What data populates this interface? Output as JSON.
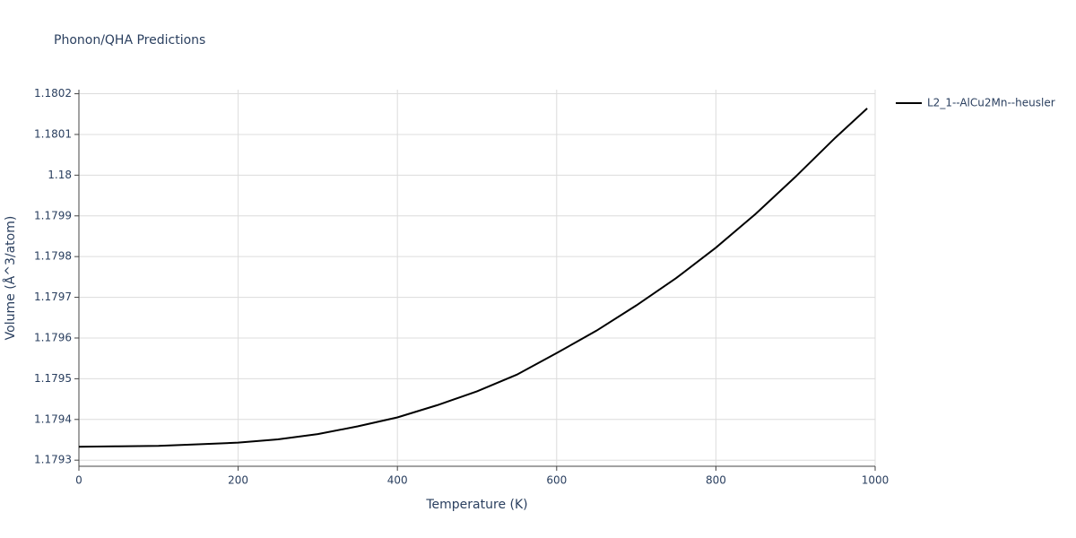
{
  "chart_data": {
    "type": "line",
    "title": "Phonon/QHA Predictions",
    "x_label": "Temperature (K)",
    "y_label": "Volume (Å^3/atom)",
    "x": [
      0,
      50,
      100,
      150,
      200,
      250,
      300,
      350,
      400,
      450,
      500,
      550,
      600,
      650,
      700,
      750,
      800,
      850,
      900,
      950,
      990
    ],
    "series": [
      {
        "name": "L2_1--AlCu2Mn--heusler",
        "color": "#000000",
        "values": [
          1.179333,
          1.179334,
          1.179335,
          1.179339,
          1.179343,
          1.179351,
          1.179364,
          1.179383,
          1.179405,
          1.179435,
          1.179469,
          1.17951,
          1.179563,
          1.179618,
          1.17968,
          1.179747,
          1.179822,
          1.179905,
          1.179996,
          1.180092,
          1.180164
        ]
      }
    ],
    "xlim": [
      0,
      1000
    ],
    "xticks": [
      0,
      200,
      400,
      600,
      800,
      1000
    ],
    "ylim": [
      1.179285,
      1.18021
    ],
    "yticks": [
      1.1793,
      1.1794,
      1.1795,
      1.1796,
      1.1797,
      1.1798,
      1.1799,
      1.18,
      1.1801,
      1.1802
    ],
    "grid": true,
    "legend": "top-right"
  }
}
